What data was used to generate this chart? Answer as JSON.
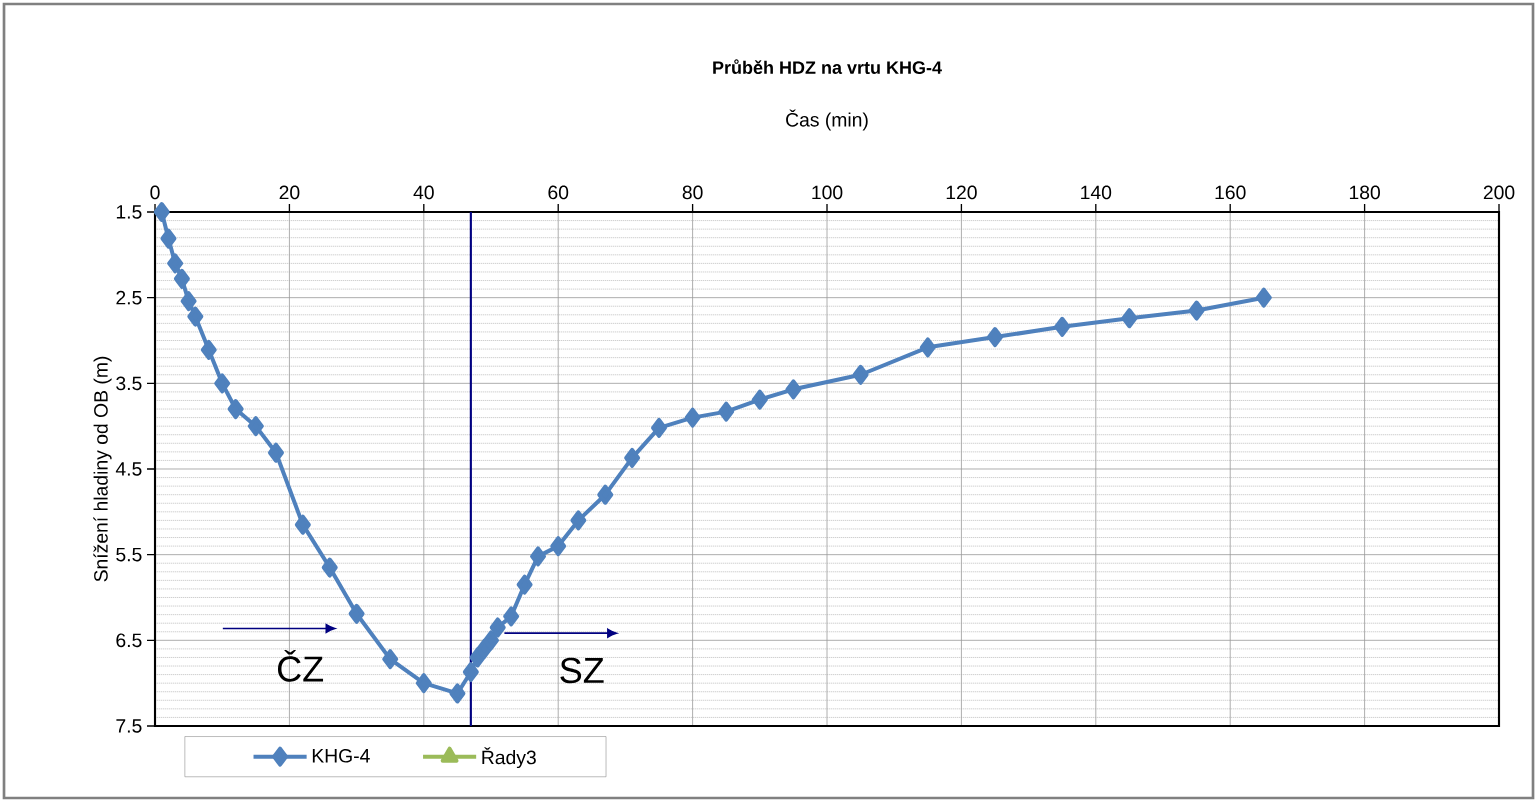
{
  "chart_data": {
    "type": "line",
    "title": "Průběh HDZ na vrtu KHG-4",
    "xlabel": "Čas (min)",
    "ylabel": "Snížení hladiny od OB (m)",
    "series": [
      {
        "name": "KHG-4",
        "color": "#4f81bd",
        "marker": "diamond",
        "x": [
          1,
          2,
          3,
          4,
          5,
          6,
          8,
          10,
          12,
          15,
          18,
          22,
          26,
          30,
          35,
          40,
          45,
          47,
          48,
          49,
          50,
          51,
          53,
          55,
          57,
          60,
          63,
          67,
          71,
          75,
          80,
          85,
          90,
          95,
          105,
          115,
          125,
          135,
          145,
          155,
          165
        ],
        "values": [
          1.5,
          1.81,
          2.1,
          2.28,
          2.54,
          2.72,
          3.11,
          3.5,
          3.8,
          4.0,
          4.31,
          5.15,
          5.65,
          6.19,
          6.72,
          7.0,
          7.12,
          6.87,
          6.7,
          6.6,
          6.5,
          6.35,
          6.22,
          5.85,
          5.52,
          5.4,
          5.1,
          4.8,
          4.37,
          4.02,
          3.9,
          3.83,
          3.69,
          3.57,
          3.4,
          3.08,
          2.96,
          2.84,
          2.74,
          2.65,
          2.5
        ]
      },
      {
        "name": "Řady3",
        "color": "#9bbb59",
        "marker": "triangle"
      }
    ],
    "xlim": [
      0,
      200
    ],
    "xticks": [
      0,
      20,
      40,
      60,
      80,
      100,
      120,
      140,
      160,
      180,
      200
    ],
    "ylim": [
      7.5,
      1.5
    ],
    "yticks": [
      1.5,
      2.5,
      3.5,
      4.5,
      5.5,
      6.5,
      7.5
    ],
    "grid": true,
    "legend": "bottom",
    "ref_lines": [
      {
        "axis": "x",
        "value": 47,
        "color": "#000080"
      }
    ],
    "annotations": [
      "ČZ",
      "SZ"
    ]
  }
}
